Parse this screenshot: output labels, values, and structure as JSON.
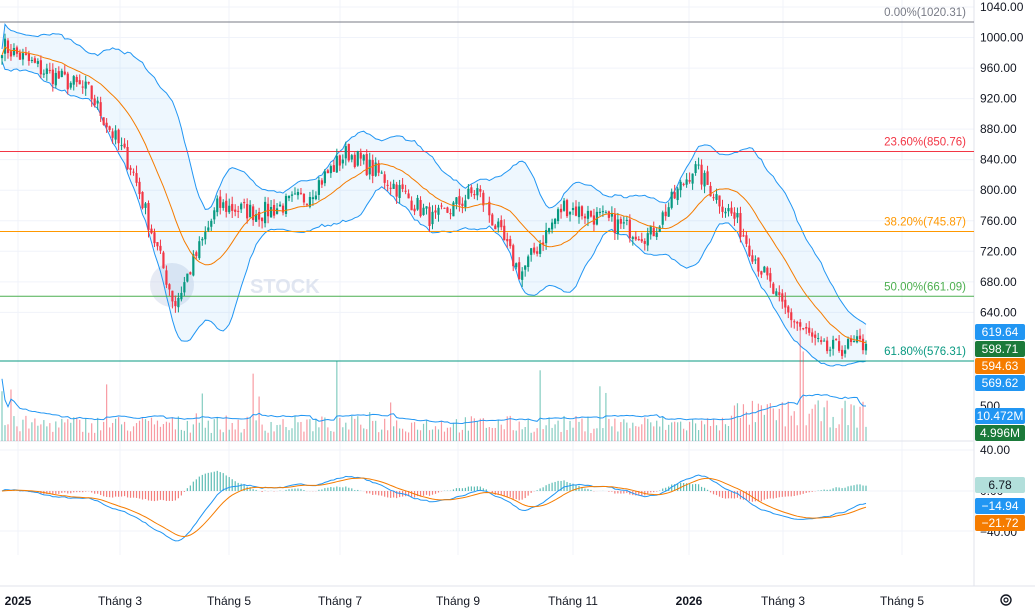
{
  "watermark": "STOCK",
  "settings_icon": "gear-icon",
  "chart_data": {
    "type": "candlestick",
    "instrument_panels": [
      "price with Bollinger Bands, MA and Fibonacci retracement",
      "volume with MA",
      "MACD"
    ],
    "x_axis": {
      "labels": [
        "2025",
        "Tháng 3",
        "Tháng 5",
        "Tháng 7",
        "Tháng 9",
        "Tháng 11",
        "2026",
        "Tháng 3",
        "Tháng 5"
      ],
      "bold_labels": [
        "2025",
        "2026"
      ]
    },
    "price_axis": {
      "range": [
        600,
        1040
      ],
      "ticks": [
        640,
        680,
        720,
        760,
        800,
        840,
        880,
        920,
        960,
        1000,
        1040
      ]
    },
    "fibonacci": [
      {
        "label": "0.00%(1020.31)",
        "value": 1020.31,
        "color": "#787b86"
      },
      {
        "label": "23.60%(850.76)",
        "value": 850.76,
        "color": "#f23645"
      },
      {
        "label": "38.20%(745.87)",
        "value": 745.87,
        "color": "#ff9800"
      },
      {
        "label": "50.00%(661.09)",
        "value": 661.09,
        "color": "#4caf50"
      },
      {
        "label": "61.80%(576.31)",
        "value": 576.31,
        "color": "#089981"
      }
    ],
    "price_series_closes": [
      {
        "date": "2025-01",
        "close": 990
      },
      {
        "date": "2025-02",
        "close": 955
      },
      {
        "date": "2025-03",
        "close": 930
      },
      {
        "date": "2025-03-mid",
        "close": 830
      },
      {
        "date": "2025-04",
        "close": 650
      },
      {
        "date": "2025-05",
        "close": 780
      },
      {
        "date": "2025-06",
        "close": 770
      },
      {
        "date": "2025-07",
        "close": 790
      },
      {
        "date": "2025-07-mid",
        "close": 850
      },
      {
        "date": "2025-08",
        "close": 810
      },
      {
        "date": "2025-09",
        "close": 760
      },
      {
        "date": "2025-09-mid",
        "close": 800
      },
      {
        "date": "2025-10",
        "close": 690
      },
      {
        "date": "2025-11",
        "close": 780
      },
      {
        "date": "2025-12",
        "close": 760
      },
      {
        "date": "2025-12-end",
        "close": 740
      },
      {
        "date": "2026-01",
        "close": 830
      },
      {
        "date": "2026-02",
        "close": 760
      },
      {
        "date": "2026-03",
        "close": 650
      },
      {
        "date": "2026-03-mid",
        "close": 590
      },
      {
        "date": "2026-04",
        "close": 598.71
      }
    ],
    "badges": [
      {
        "text": "619.64",
        "role": "bollinger-upper",
        "bg": "#2196f3",
        "fg": "#ffffff"
      },
      {
        "text": "598.71",
        "role": "last-price",
        "bg": "#1b7a3a",
        "fg": "#ffffff"
      },
      {
        "text": "594.63",
        "role": "moving-average",
        "bg": "#f57c00",
        "fg": "#ffffff"
      },
      {
        "text": "569.62",
        "role": "bollinger-lower",
        "bg": "#2196f3",
        "fg": "#ffffff"
      },
      {
        "text": "10.472M",
        "role": "volume-ma",
        "bg": "#2196f3",
        "fg": "#ffffff"
      },
      {
        "text": "4.996M",
        "role": "volume",
        "bg": "#1b7a3a",
        "fg": "#ffffff"
      },
      {
        "text": "6.78",
        "role": "macd-histogram",
        "bg": "#b2dfdb",
        "fg": "#131722"
      },
      {
        "text": "−14.94",
        "role": "macd-line",
        "bg": "#2196f3",
        "fg": "#ffffff"
      },
      {
        "text": "−21.72",
        "role": "signal-line",
        "bg": "#f57c00",
        "fg": "#ffffff"
      }
    ],
    "volume_axis": {
      "visible_ticks": [
        "500"
      ]
    },
    "macd_axis": {
      "ticks": [
        "40.00",
        "0.00",
        "−40.00"
      ]
    }
  }
}
